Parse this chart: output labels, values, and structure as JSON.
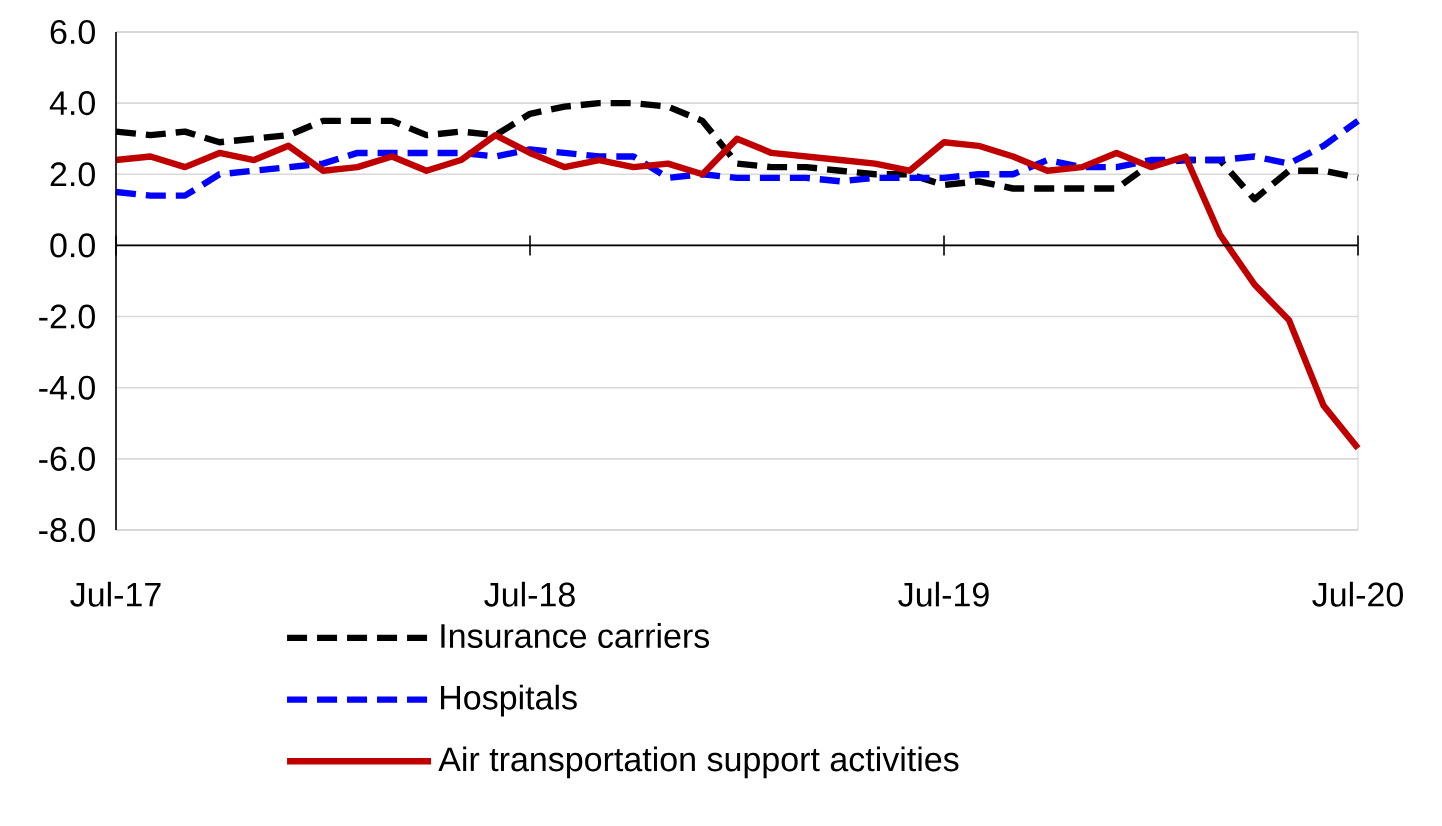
{
  "chart_data": {
    "type": "line",
    "x": [
      "2017-07",
      "2017-08",
      "2017-09",
      "2017-10",
      "2017-11",
      "2017-12",
      "2018-01",
      "2018-02",
      "2018-03",
      "2018-04",
      "2018-05",
      "2018-06",
      "2018-07",
      "2018-08",
      "2018-09",
      "2018-10",
      "2018-11",
      "2018-12",
      "2019-01",
      "2019-02",
      "2019-03",
      "2019-04",
      "2019-05",
      "2019-06",
      "2019-07",
      "2019-08",
      "2019-09",
      "2019-10",
      "2019-11",
      "2019-12",
      "2020-01",
      "2020-02",
      "2020-03",
      "2020-04",
      "2020-05",
      "2020-06",
      "2020-07"
    ],
    "series": [
      {
        "name": "Insurance carriers",
        "color": "#000000",
        "line_style": "dashed",
        "values": [
          3.2,
          3.1,
          3.2,
          2.9,
          3.0,
          3.1,
          3.5,
          3.5,
          3.5,
          3.1,
          3.2,
          3.1,
          3.7,
          3.9,
          4.0,
          4.0,
          3.9,
          3.5,
          2.3,
          2.2,
          2.2,
          2.1,
          2.0,
          2.0,
          1.7,
          1.8,
          1.6,
          1.6,
          1.6,
          1.6,
          2.3,
          2.4,
          2.4,
          1.3,
          2.1,
          2.1,
          1.9
        ]
      },
      {
        "name": "Hospitals",
        "color": "#0000ff",
        "line_style": "dashed",
        "values": [
          1.5,
          1.4,
          1.4,
          2.0,
          2.1,
          2.2,
          2.3,
          2.6,
          2.6,
          2.6,
          2.6,
          2.5,
          2.7,
          2.6,
          2.5,
          2.5,
          1.9,
          2.0,
          1.9,
          1.9,
          1.9,
          1.8,
          1.9,
          1.9,
          1.9,
          2.0,
          2.0,
          2.4,
          2.2,
          2.2,
          2.4,
          2.4,
          2.4,
          2.5,
          2.3,
          2.8,
          3.5
        ]
      },
      {
        "name": "Air transportation support activities",
        "color": "#c00000",
        "line_style": "solid",
        "values": [
          2.4,
          2.5,
          2.2,
          2.6,
          2.4,
          2.8,
          2.1,
          2.2,
          2.5,
          2.1,
          2.4,
          3.1,
          2.6,
          2.2,
          2.4,
          2.2,
          2.3,
          2.0,
          3.0,
          2.6,
          2.5,
          2.4,
          2.3,
          2.1,
          2.9,
          2.8,
          2.5,
          2.1,
          2.2,
          2.6,
          2.2,
          2.5,
          0.3,
          -1.1,
          -2.1,
          -4.5,
          -5.7
        ]
      }
    ],
    "xlim": [
      "2017-07",
      "2020-07"
    ],
    "xticks": [
      {
        "value": "2017-07",
        "label": "Jul-17"
      },
      {
        "value": "2018-07",
        "label": "Jul-18"
      },
      {
        "value": "2019-07",
        "label": "Jul-19"
      },
      {
        "value": "2020-07",
        "label": "Jul-20"
      }
    ],
    "ylim": [
      -8,
      6
    ],
    "yticks": [
      {
        "value": -8,
        "label": "-8.0"
      },
      {
        "value": -6,
        "label": "-6.0"
      },
      {
        "value": -4,
        "label": "-4.0"
      },
      {
        "value": -2,
        "label": "-2.0"
      },
      {
        "value": 0,
        "label": "0.0"
      },
      {
        "value": 2,
        "label": "2.0"
      },
      {
        "value": 4,
        "label": "4.0"
      },
      {
        "value": 6,
        "label": "6.0"
      }
    ],
    "grid": "y",
    "legend": "bottom",
    "marker": "none"
  }
}
